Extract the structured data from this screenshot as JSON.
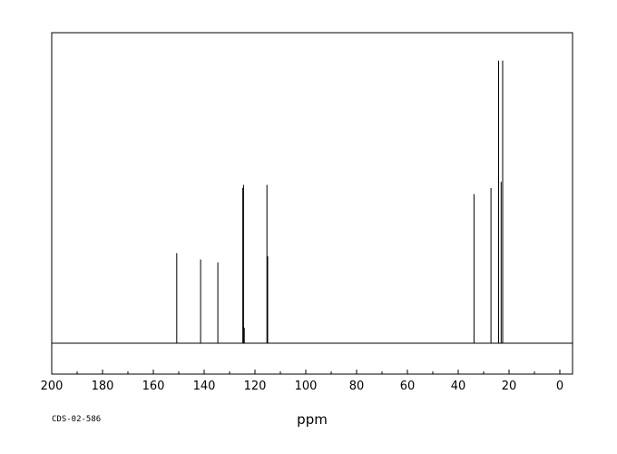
{
  "chart_data": {
    "type": "line",
    "title": "",
    "xlabel": "ppm",
    "ylabel": "",
    "xlim": [
      200,
      -5
    ],
    "x_reversed": true,
    "grid": false,
    "code": "CDS-02-586",
    "x_ticks": [
      200,
      180,
      160,
      140,
      120,
      100,
      80,
      60,
      40,
      20,
      0
    ],
    "peaks": [
      {
        "ppm": 150.8,
        "height": 0.29
      },
      {
        "ppm": 141.4,
        "height": 0.27
      },
      {
        "ppm": 134.6,
        "height": 0.26
      },
      {
        "ppm": 124.8,
        "height": 0.5
      },
      {
        "ppm": 124.5,
        "height": 0.51
      },
      {
        "ppm": 124.2,
        "height": 0.05
      },
      {
        "ppm": 115.3,
        "height": 0.51
      },
      {
        "ppm": 115.0,
        "height": 0.28
      },
      {
        "ppm": 33.8,
        "height": 0.48
      },
      {
        "ppm": 27.1,
        "height": 0.5
      },
      {
        "ppm": 24.1,
        "height": 0.91
      },
      {
        "ppm": 23.1,
        "height": 0.52
      },
      {
        "ppm": 22.5,
        "height": 0.91
      }
    ]
  }
}
